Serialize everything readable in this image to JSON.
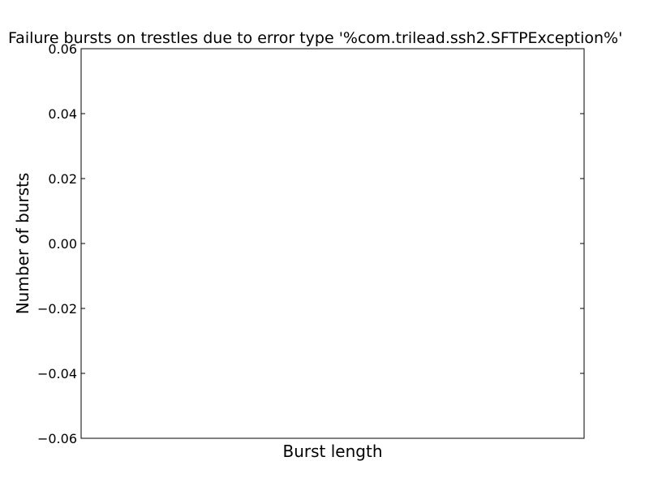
{
  "chart_data": {
    "type": "bar",
    "title": "Failure bursts on trestles due to error type '%com.trilead.ssh2.SFTPException%'",
    "xlabel": "Burst length",
    "ylabel": "Number of bursts",
    "categories": [],
    "values": [],
    "ylim": [
      -0.06,
      0.06
    ],
    "yticks": [
      0.06,
      0.04,
      0.02,
      0.0,
      -0.02,
      -0.04,
      -0.06
    ],
    "ytick_labels": [
      "0.06",
      "0.04",
      "0.02",
      "0.00",
      "−0.02",
      "−0.04",
      "−0.06"
    ],
    "grid": false,
    "legend": "none"
  }
}
